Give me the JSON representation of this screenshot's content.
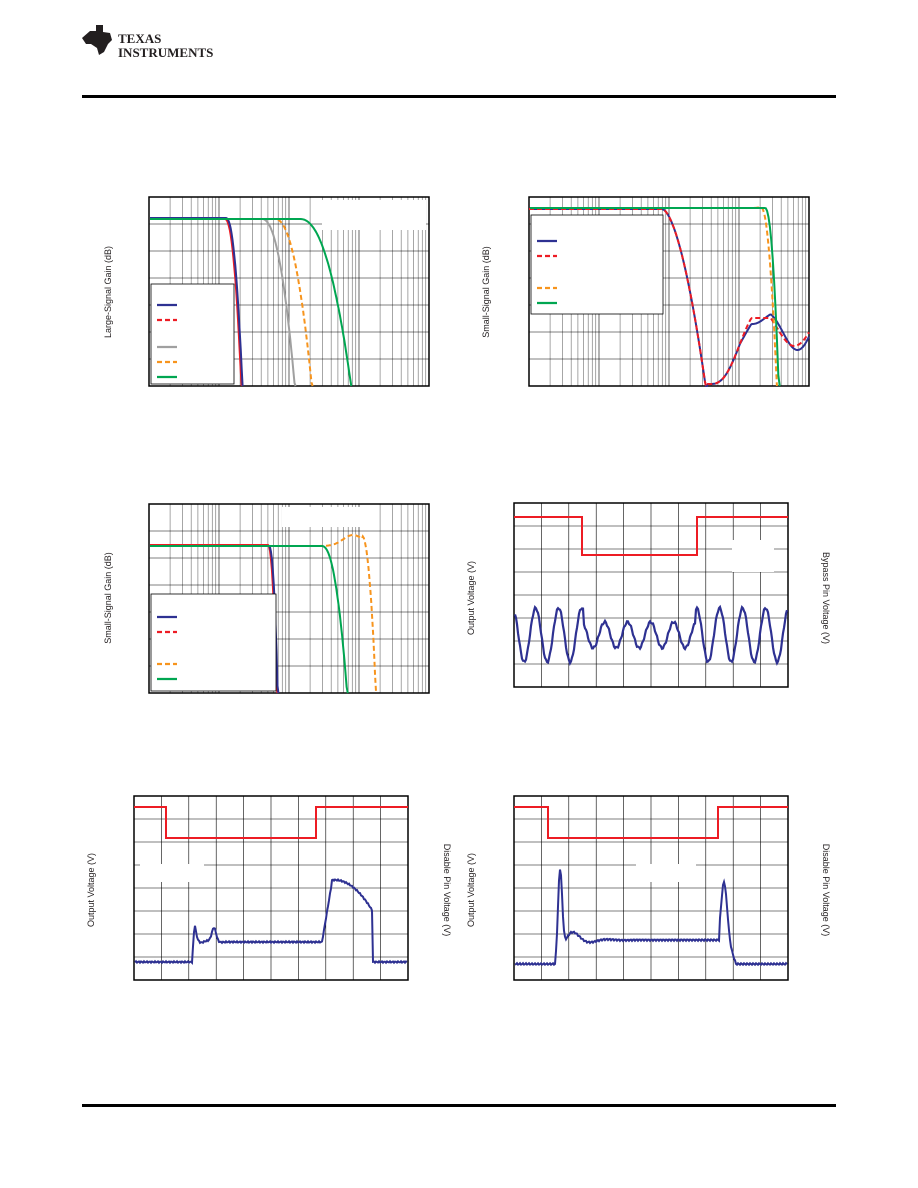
{
  "header": {
    "brand_line1": "TEXAS",
    "brand_line2": "INSTRUMENTS"
  },
  "colors": {
    "blue": "#2e3192",
    "red": "#ed1c24",
    "gray": "#a0a0a0",
    "orange": "#f7941d",
    "green": "#00a651"
  },
  "plots": {
    "large_signal_gain": {
      "ylabel": "Large-Signal Gain (dB)"
    },
    "small_signal_gain_1": {
      "ylabel": "Small-Signal Gain (dB)"
    },
    "small_signal_gain_2": {
      "ylabel": "Small-Signal Gain (dB)"
    },
    "bypass_transient": {
      "ylabel_left": "Output Voltage (V)",
      "ylabel_right": "Bypass Pin Voltage (V)"
    },
    "disable_transient_1": {
      "ylabel_left": "Output Voltage (V)",
      "ylabel_right": "Disable Pin Voltage (V)"
    },
    "disable_transient_2": {
      "ylabel_left": "Output Voltage (V)",
      "ylabel_right": "Disable Pin Voltage (V)"
    }
  }
}
